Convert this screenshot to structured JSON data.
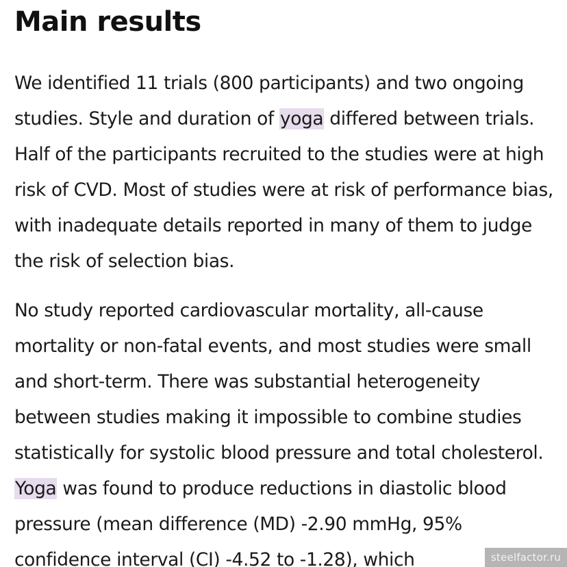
{
  "heading": "Main results",
  "paragraph1": {
    "before": "We identified 11 trials (800 participants) and two ongoing studies. Style and duration of ",
    "highlight": "yoga",
    "after": " differed between trials. Half of the participants recruited to the studies were at high risk of CVD. Most of studies were at risk of performance bias, with inadequate details reported in many of them to judge the risk of selection bias."
  },
  "paragraph2": {
    "before": "No study reported cardiovascular mortality, all-cause mortality or non-fatal events, and most studies were small and short-term. There was substantial heterogeneity between studies making it impossible to combine studies statistically for systolic blood pressure and total cholesterol. ",
    "highlight": "Yoga",
    "after": " was found to produce reductions in diastolic blood pressure (mean difference (MD) -2.90 mmHg, 95% confidence interval (CI) -4.52 to -1.28), which"
  },
  "watermark": "steelfactor.ru",
  "colors": {
    "highlight": "#e6dcec",
    "text": "#1a1a1a",
    "background": "#ffffff"
  }
}
